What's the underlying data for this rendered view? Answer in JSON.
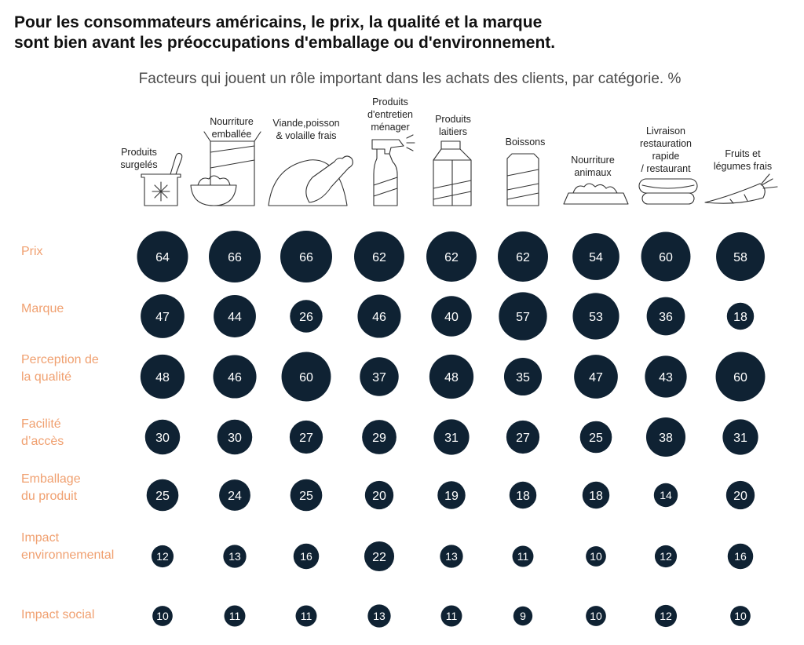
{
  "title_lines": [
    "Pour les consommateurs américains, le prix, la qualité et la marque",
    "sont bien avant les préoccupations d'emballage ou d'environnement."
  ],
  "chart_data": {
    "type": "bubble-matrix",
    "title": "Pour les consommateurs américains, le prix, la qualité et la marque sont bien avant les préoccupations d'emballage ou d'environnement.",
    "subtitle": "Facteurs qui jouent un rôle important dans les achats des clients, par catégorie. %",
    "categories": [
      {
        "label": [
          "Produits",
          "surgelés"
        ],
        "icon": "frozen-food-icon"
      },
      {
        "label": [
          "Nourriture",
          "emballée"
        ],
        "icon": "packaged-food-icon"
      },
      {
        "label": [
          "Viande,poisson",
          "& volaille frais"
        ],
        "icon": "poultry-icon"
      },
      {
        "label": [
          "Produits",
          "d'entretien",
          "ménager"
        ],
        "icon": "spray-bottle-icon"
      },
      {
        "label": [
          "Produits",
          "laitiers"
        ],
        "icon": "milk-carton-icon"
      },
      {
        "label": [
          "Boissons"
        ],
        "icon": "beverage-can-icon"
      },
      {
        "label": [
          "Nourriture",
          "animaux"
        ],
        "icon": "pet-bowl-icon"
      },
      {
        "label": [
          "Livraison",
          "restauration",
          "rapide",
          "/ restaurant"
        ],
        "icon": "hotdog-icon"
      },
      {
        "label": [
          "Fruits et",
          "légumes frais"
        ],
        "icon": "carrot-icon"
      }
    ],
    "rows": [
      {
        "label": [
          "Prix"
        ],
        "values": [
          64,
          66,
          66,
          62,
          62,
          62,
          54,
          60,
          58
        ]
      },
      {
        "label": [
          "Marque"
        ],
        "values": [
          47,
          44,
          26,
          46,
          40,
          57,
          53,
          36,
          18
        ]
      },
      {
        "label": [
          "Perception de",
          "la qualité"
        ],
        "values": [
          48,
          46,
          60,
          37,
          48,
          35,
          47,
          43,
          60
        ]
      },
      {
        "label": [
          "Facilité",
          "d’accès"
        ],
        "values": [
          30,
          30,
          27,
          29,
          31,
          27,
          25,
          38,
          31
        ]
      },
      {
        "label": [
          "Emballage",
          "du produit"
        ],
        "values": [
          25,
          24,
          25,
          20,
          19,
          18,
          18,
          14,
          20
        ]
      },
      {
        "label": [
          "Impact",
          "environnemental"
        ],
        "values": [
          12,
          13,
          16,
          22,
          13,
          11,
          10,
          12,
          16
        ]
      },
      {
        "label": [
          "Impact social"
        ],
        "values": [
          10,
          11,
          11,
          13,
          11,
          9,
          10,
          12,
          10
        ]
      }
    ],
    "colors": {
      "bubble": "#0f2233",
      "bubble_text": "#ffffff",
      "row_label": "#f0a070",
      "category_label": "#222222"
    }
  }
}
